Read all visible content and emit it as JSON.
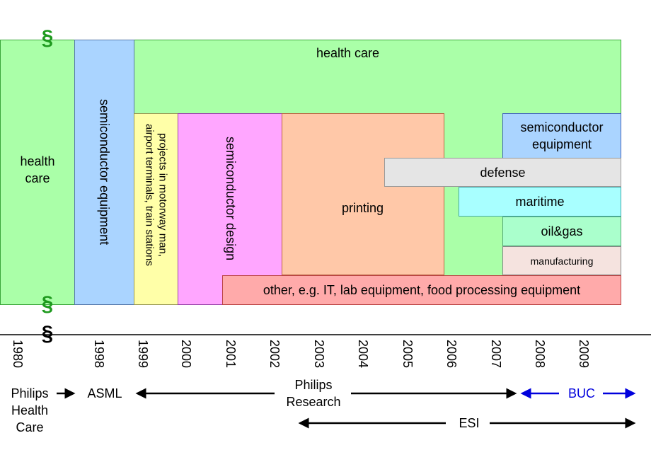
{
  "diagram": {
    "colors": {
      "health_care": "#aaffa8",
      "semiconductor_equipment": "#aad4ff",
      "projects": "#ffffa8",
      "semiconductor_design": "#ffa6ff",
      "printing": "#ffc8a8",
      "defense": "#e5e5e5",
      "maritime": "#a8ffff",
      "oil_gas": "#aaffcc",
      "manufacturing": "#f5e3df",
      "other": "#ffaaaa",
      "border_green": "#3aa63a",
      "break_mark": "#1e9a1e",
      "buc_blue": "#0000dd"
    },
    "blocks": {
      "health_care_left": "health\ncare",
      "semiconductor_equipment_vertical": "semiconductor equipment",
      "health_care_top": "health care",
      "projects": "projects in motorway man,\nairport terminals, train stations",
      "semiconductor_design": "semiconductor design",
      "printing": "printing",
      "semiconductor_equipment_right": "semiconductor\nequipment",
      "defense": "defense",
      "maritime": "maritime",
      "oil_gas": "oil&gas",
      "manufacturing": "manufacturing",
      "other": "other, e.g. IT, lab equipment, food processing equipment"
    },
    "break_symbol": "§",
    "years": [
      "1980",
      "1998",
      "1999",
      "2000",
      "2001",
      "2002",
      "2003",
      "2004",
      "2005",
      "2006",
      "2007",
      "2008",
      "2009"
    ],
    "organizations": {
      "philips_health_care": "Philips\nHealth\nCare",
      "asml": "ASML",
      "philips_research": "Philips\nResearch",
      "buc": "BUC",
      "esi": "ESI"
    }
  }
}
